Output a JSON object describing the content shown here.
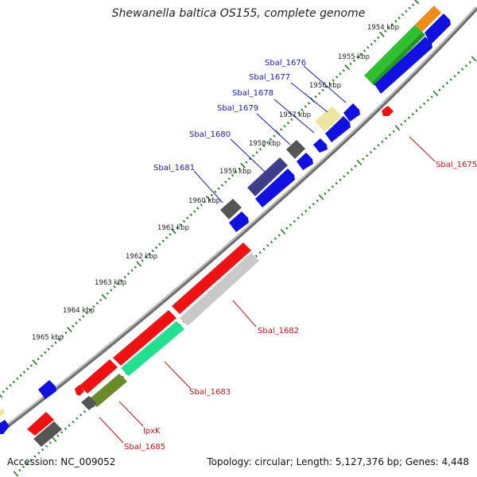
{
  "title": "Shewanella baltica OS155, complete genome",
  "footer": {
    "accession": "Accession: NC_009052",
    "topology": "Topology: circular; Length: 5,127,376 bp; Genes: 4,448"
  },
  "colors": {
    "backbone": "#8a8a8a",
    "tick": "#1e7a1e",
    "forward_label": "#1a1aa8",
    "reverse_label": "#cc1111",
    "kbp_label": "#222222"
  },
  "scale_labels": [
    {
      "text": "1954 kbp",
      "kbp": 1954
    },
    {
      "text": "1955 kbp",
      "kbp": 1955
    },
    {
      "text": "1956 kbp",
      "kbp": 1956
    },
    {
      "text": "1957 kbp",
      "kbp": 1957
    },
    {
      "text": "1958 kbp",
      "kbp": 1958
    },
    {
      "text": "1959 kbp",
      "kbp": 1959
    },
    {
      "text": "1960 kbp",
      "kbp": 1960
    },
    {
      "text": "1961 kbp",
      "kbp": 1961
    },
    {
      "text": "1962 kbp",
      "kbp": 1962
    },
    {
      "text": "1963 kbp",
      "kbp": 1963
    },
    {
      "text": "1964 kbp",
      "kbp": 1964
    },
    {
      "text": "1965 kbp",
      "kbp": 1965
    }
  ],
  "gene_labels": {
    "forward": [
      "Sbal_1676",
      "Sbal_1677",
      "Sbal_1678",
      "Sbal_1679",
      "Sbal_1680",
      "Sbal_1681"
    ],
    "reverse": [
      "Sbal_1675",
      "Sbal_1682",
      "Sbal_1683",
      "lpxK",
      "Sbal_1685"
    ]
  }
}
